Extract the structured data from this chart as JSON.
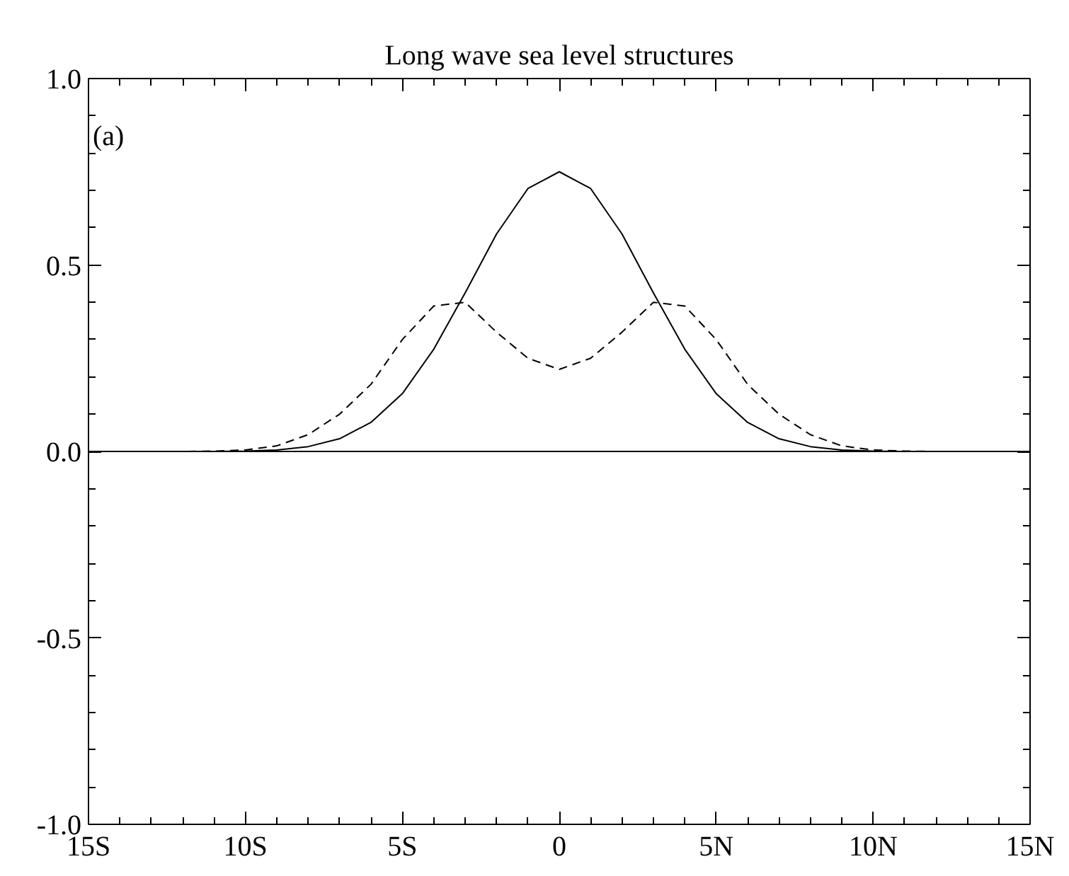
{
  "chart_data": {
    "type": "line",
    "title": "Long wave sea level structures",
    "x": [
      -15,
      -14,
      -13,
      -12,
      -11,
      -10,
      -9,
      -8,
      -7,
      -6,
      -5,
      -4,
      -3,
      -2,
      -1,
      0,
      1,
      2,
      3,
      4,
      5,
      6,
      7,
      8,
      9,
      10,
      11,
      12,
      13,
      14,
      15
    ],
    "series": [
      {
        "color": "#000000",
        "line_style": "solid",
        "values": [
          0,
          0,
          0,
          0,
          0,
          0.001,
          0.004,
          0.013,
          0.034,
          0.078,
          0.155,
          0.274,
          0.425,
          0.583,
          0.705,
          0.75,
          0.705,
          0.583,
          0.425,
          0.274,
          0.155,
          0.078,
          0.034,
          0.013,
          0.004,
          0.001,
          0,
          0,
          0,
          0,
          0
        ]
      },
      {
        "color": "#000000",
        "line_style": "dashed",
        "values": [
          0,
          0,
          0,
          0,
          0.001,
          0.004,
          0.015,
          0.045,
          0.1,
          0.18,
          0.3,
          0.39,
          0.4,
          0.32,
          0.25,
          0.22,
          0.25,
          0.32,
          0.4,
          0.39,
          0.3,
          0.18,
          0.1,
          0.045,
          0.015,
          0.004,
          0.001,
          0,
          0,
          0,
          0
        ]
      }
    ],
    "xlim": [
      -15,
      15
    ],
    "ylim": [
      -1.0,
      1.0
    ],
    "xticks": [
      {
        "value": -15,
        "label": "15S"
      },
      {
        "value": -14,
        "label": null
      },
      {
        "value": -13,
        "label": null
      },
      {
        "value": -12,
        "label": null
      },
      {
        "value": -11,
        "label": null
      },
      {
        "value": -10,
        "label": "10S"
      },
      {
        "value": -9,
        "label": null
      },
      {
        "value": -8,
        "label": null
      },
      {
        "value": -7,
        "label": null
      },
      {
        "value": -6,
        "label": null
      },
      {
        "value": -5,
        "label": "5S"
      },
      {
        "value": -4,
        "label": null
      },
      {
        "value": -3,
        "label": null
      },
      {
        "value": -2,
        "label": null
      },
      {
        "value": -1,
        "label": null
      },
      {
        "value": 0,
        "label": "0"
      },
      {
        "value": 1,
        "label": null
      },
      {
        "value": 2,
        "label": null
      },
      {
        "value": 3,
        "label": null
      },
      {
        "value": 4,
        "label": null
      },
      {
        "value": 5,
        "label": "5N"
      },
      {
        "value": 6,
        "label": null
      },
      {
        "value": 7,
        "label": null
      },
      {
        "value": 8,
        "label": null
      },
      {
        "value": 9,
        "label": null
      },
      {
        "value": 10,
        "label": "10N"
      },
      {
        "value": 11,
        "label": null
      },
      {
        "value": 12,
        "label": null
      },
      {
        "value": 13,
        "label": null
      },
      {
        "value": 14,
        "label": null
      },
      {
        "value": 15,
        "label": "15N"
      }
    ],
    "yticks": [
      {
        "value": -1.0,
        "label": "-1.0"
      },
      {
        "value": -0.9,
        "label": null
      },
      {
        "value": -0.8,
        "label": null
      },
      {
        "value": -0.7,
        "label": null
      },
      {
        "value": -0.6,
        "label": null
      },
      {
        "value": -0.5,
        "label": "-0.5"
      },
      {
        "value": -0.4,
        "label": null
      },
      {
        "value": -0.3,
        "label": null
      },
      {
        "value": -0.2,
        "label": null
      },
      {
        "value": -0.1,
        "label": null
      },
      {
        "value": 0.0,
        "label": "0.0"
      },
      {
        "value": 0.1,
        "label": null
      },
      {
        "value": 0.2,
        "label": null
      },
      {
        "value": 0.3,
        "label": null
      },
      {
        "value": 0.4,
        "label": null
      },
      {
        "value": 0.5,
        "label": "0.5"
      },
      {
        "value": 0.6,
        "label": null
      },
      {
        "value": 0.7,
        "label": null
      },
      {
        "value": 0.8,
        "label": null
      },
      {
        "value": 0.9,
        "label": null
      },
      {
        "value": 1.0,
        "label": "1.0"
      }
    ],
    "ref_lines": [
      {
        "axis": "y",
        "value": 0,
        "color": "#000000",
        "line_style": "solid"
      }
    ],
    "annotations": [
      "(a)"
    ],
    "grid": false,
    "marker": "none"
  }
}
